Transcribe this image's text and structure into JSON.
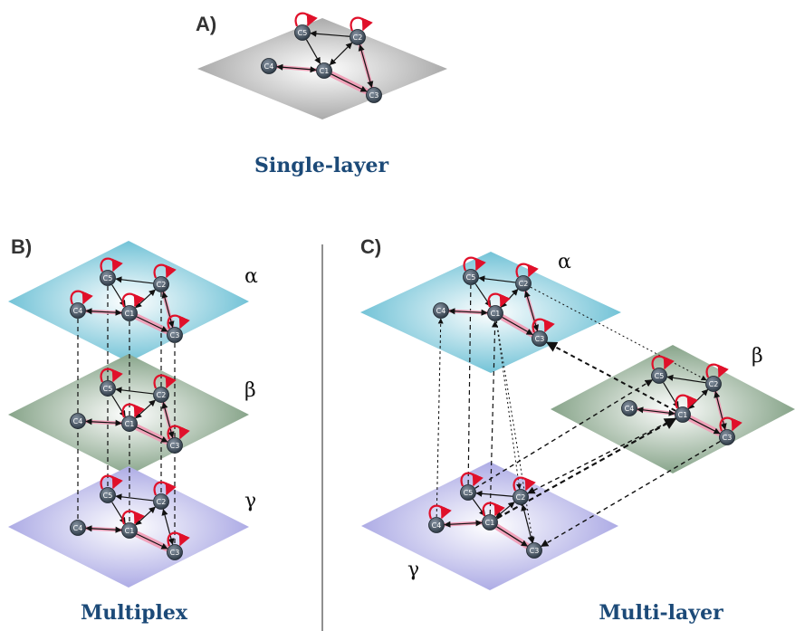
{
  "colors": {
    "caption": "#1c4a78",
    "node": "#2f3b47",
    "self_loop": "#e0102a",
    "weighted_link": "#f29ab4",
    "plane_single": "#9a9a9a",
    "plane_alpha": "#57b7cf",
    "plane_beta": "#6f9272",
    "plane_gamma": "#9d9be0"
  },
  "panel_a": {
    "letter": "A)",
    "caption": "Single-layer"
  },
  "panel_b": {
    "letter": "B)",
    "caption": "Multiplex",
    "layers": [
      "α",
      "β",
      "γ"
    ]
  },
  "panel_c": {
    "letter": "C)",
    "caption": "Multi-layer",
    "layers": [
      "α",
      "β",
      "γ"
    ]
  },
  "node_labels": [
    "C1",
    "C2",
    "C3",
    "C4",
    "C5"
  ]
}
